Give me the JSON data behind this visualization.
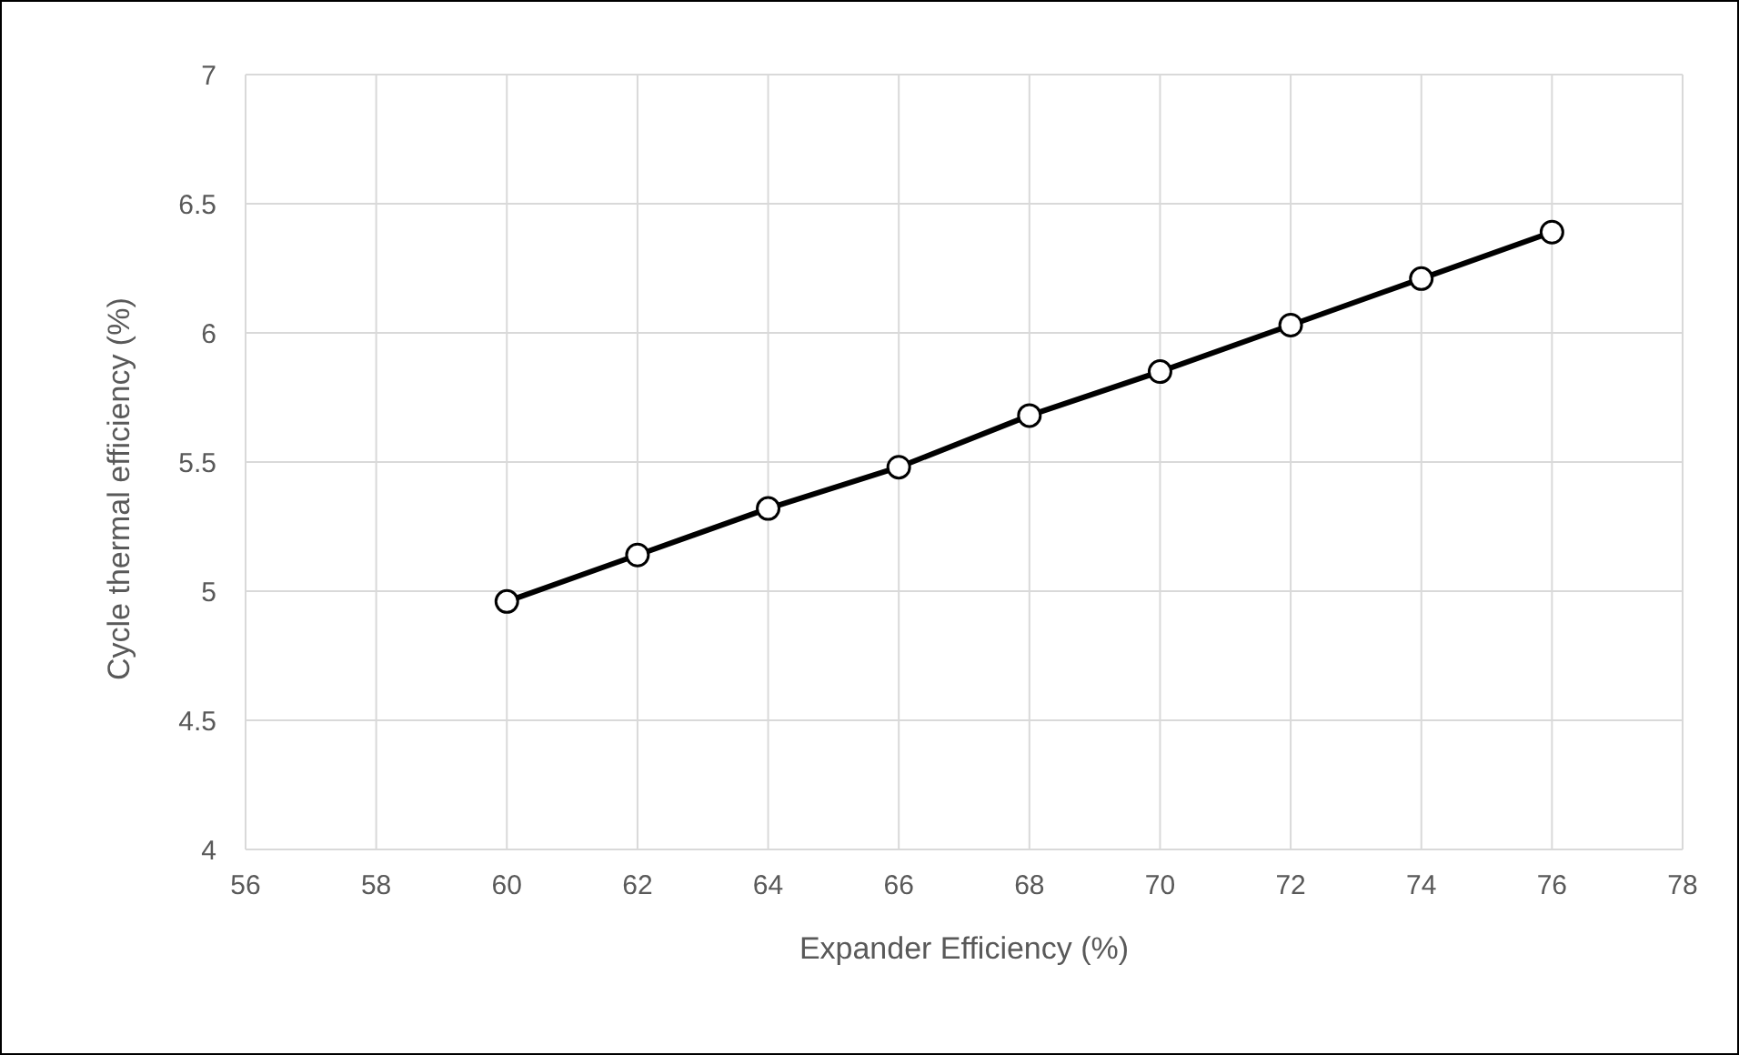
{
  "chart_data": {
    "type": "line",
    "xlabel": "Expander Efficiency (%)",
    "ylabel": "Cycle thermal efficiency (%)",
    "x": [
      60,
      62,
      64,
      66,
      68,
      70,
      72,
      74,
      76
    ],
    "series": [
      {
        "color": "#000000",
        "values": [
          4.96,
          5.14,
          5.32,
          5.48,
          5.68,
          5.85,
          6.03,
          6.21,
          6.39
        ]
      }
    ],
    "xlim": [
      56,
      78
    ],
    "xticks": [
      56,
      58,
      60,
      62,
      64,
      66,
      68,
      70,
      72,
      74,
      76,
      78
    ],
    "ylim": [
      4,
      7
    ],
    "yticks": [
      4,
      4.5,
      5,
      5.5,
      6,
      6.5,
      7
    ],
    "grid": true,
    "legend": false,
    "marker": "circle",
    "line_style": "solid"
  }
}
